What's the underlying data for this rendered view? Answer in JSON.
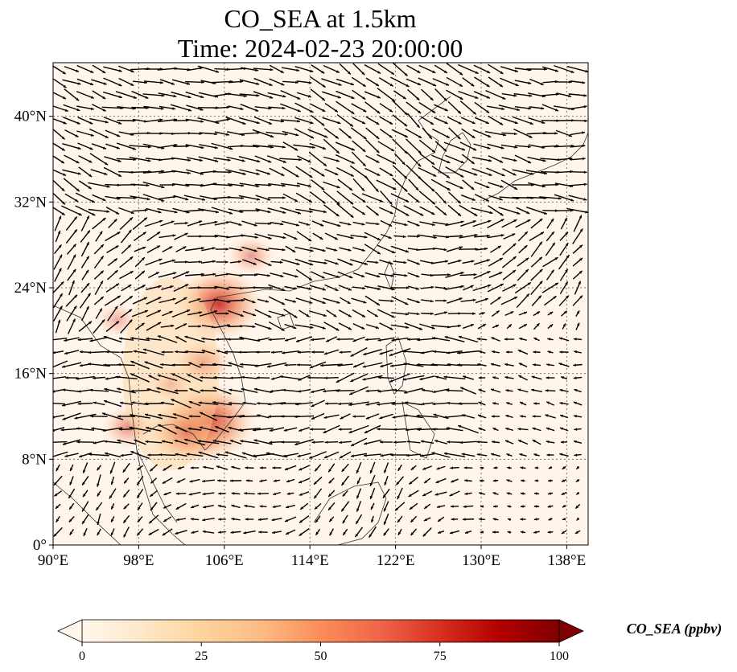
{
  "title": {
    "line1": "CO_SEA at 1.5km",
    "line2": "Time: 2024-02-23 20:00:00"
  },
  "map": {
    "lon_range": [
      90,
      140
    ],
    "lat_range": [
      0,
      45
    ],
    "lon_ticks": [
      90,
      98,
      106,
      114,
      122,
      130,
      138
    ],
    "lat_ticks": [
      0,
      8,
      16,
      24,
      32,
      40
    ],
    "lon_tick_labels": [
      "90°E",
      "98°E",
      "106°E",
      "114°E",
      "122°E",
      "130°E",
      "138°E"
    ],
    "lat_tick_labels": [
      "0°",
      "8°N",
      "16°N",
      "24°N",
      "32°N",
      "40°N"
    ],
    "gridlines": true,
    "background_color": "#fff5eb",
    "wind_vectors": true
  },
  "colorbar": {
    "label": "CO_SEA (ppbv)",
    "min": 0,
    "max": 100,
    "ticks": [
      0,
      25,
      50,
      75,
      100
    ],
    "tick_labels": [
      "0",
      "25",
      "50",
      "75",
      "100"
    ],
    "colormap": "OrRd",
    "colors": [
      "#fff7ec",
      "#fee8c8",
      "#fdd49e",
      "#fdbb84",
      "#fc8d59",
      "#ef6548",
      "#d7301f",
      "#b30000",
      "#7f0000"
    ],
    "extend": "both"
  },
  "chart_data": {
    "type": "heatmap",
    "title": "CO_SEA at 1.5km  Time: 2024-02-23 20:00:00",
    "variable": "CO_SEA",
    "units": "ppbv",
    "xlim": [
      90,
      140
    ],
    "ylim": [
      0,
      45
    ],
    "hotspots": [
      {
        "lon": 104.5,
        "lat": 11.5,
        "value": 85
      },
      {
        "lon": 102.5,
        "lat": 10.5,
        "value": 65
      },
      {
        "lon": 105.5,
        "lat": 22.5,
        "value": 75
      },
      {
        "lon": 104,
        "lat": 17,
        "value": 40
      },
      {
        "lon": 97,
        "lat": 11,
        "value": 35
      },
      {
        "lon": 96,
        "lat": 21,
        "value": 22
      },
      {
        "lon": 108.5,
        "lat": 27,
        "value": 30
      },
      {
        "lon": 101,
        "lat": 15,
        "value": 25
      }
    ]
  }
}
